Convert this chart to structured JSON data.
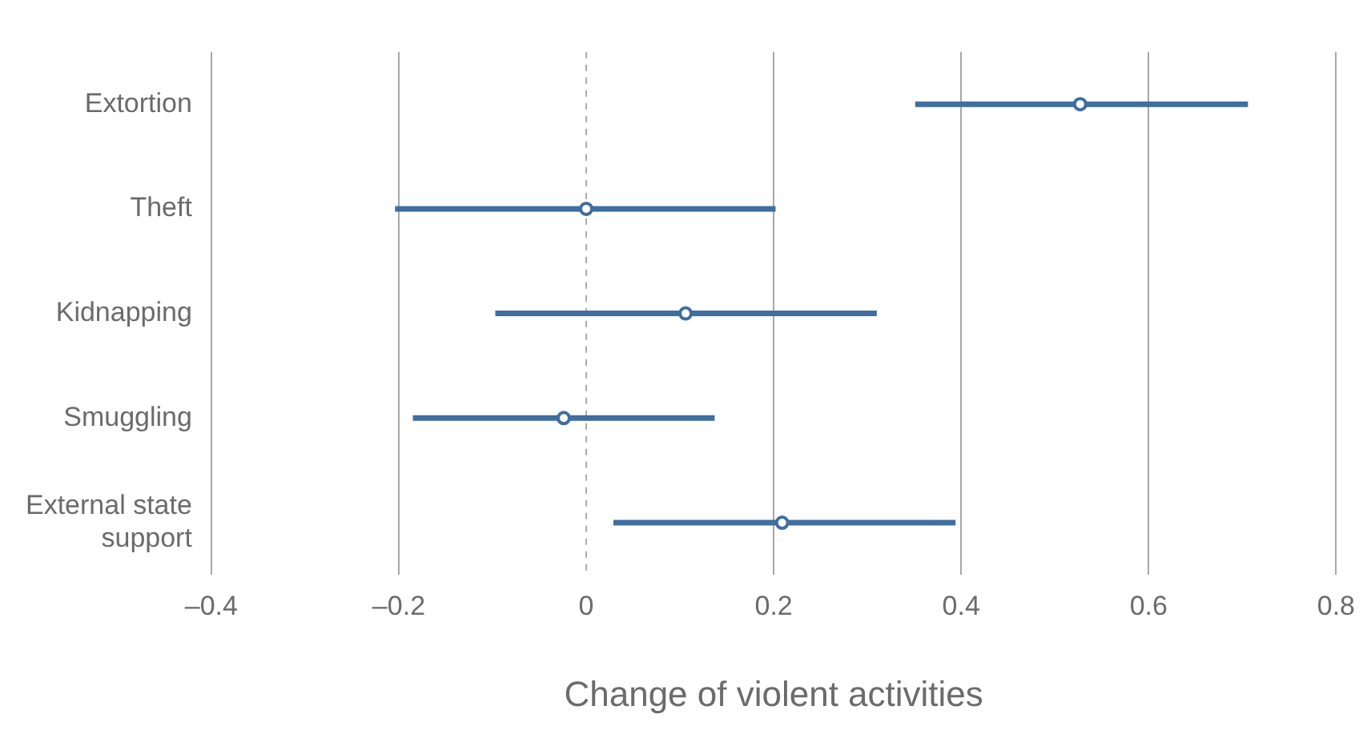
{
  "chart_data": {
    "type": "scatter",
    "orientation": "horizontal",
    "xlabel": "Change of violent activities",
    "categories": [
      "Extortion",
      "Theft",
      "Kidnapping",
      "Smuggling",
      "External state support"
    ],
    "values": [
      0.527,
      0.0,
      0.106,
      -0.024,
      0.209
    ],
    "errors": [
      [
        0.351,
        0.706
      ],
      [
        -0.204,
        0.202
      ],
      [
        -0.097,
        0.31
      ],
      [
        -0.185,
        0.137
      ],
      [
        0.029,
        0.394
      ]
    ],
    "color": "#3f6e9f",
    "marker": "circle",
    "xlim": [
      -0.4,
      0.8
    ],
    "xticks": [
      {
        "value": -0.4,
        "label": "–0.4"
      },
      {
        "value": -0.2,
        "label": "–0.2"
      },
      0,
      0.2,
      0.4,
      0.6,
      0.8
    ],
    "grid": "x",
    "ref_lines": [
      {
        "axis": "x",
        "value": 0,
        "color": "#aaaaaa",
        "line_style": "dashed"
      }
    ],
    "legend": false
  }
}
